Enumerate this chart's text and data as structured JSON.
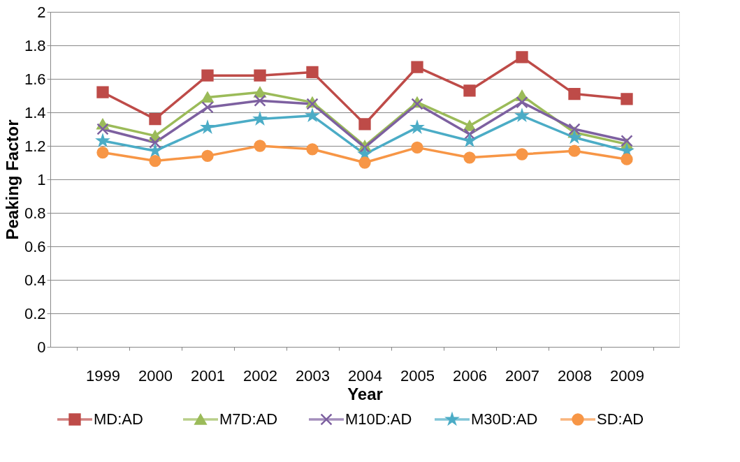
{
  "chart_data": {
    "type": "line",
    "xlabel": "Year",
    "ylabel": "Peaking Factor",
    "categories": [
      "1999",
      "2000",
      "2001",
      "2002",
      "2003",
      "2004",
      "2005",
      "2006",
      "2007",
      "2008",
      "2009"
    ],
    "series": [
      {
        "name": "MD:AD",
        "color": "#be4b48",
        "marker": "square",
        "values": [
          1.52,
          1.36,
          1.62,
          1.62,
          1.64,
          1.33,
          1.67,
          1.53,
          1.73,
          1.51,
          1.48
        ]
      },
      {
        "name": "M7D:AD",
        "color": "#9bbb59",
        "marker": "triangle",
        "values": [
          1.33,
          1.26,
          1.49,
          1.52,
          1.46,
          1.2,
          1.46,
          1.32,
          1.5,
          1.28,
          1.21
        ]
      },
      {
        "name": "M10D:AD",
        "color": "#7d60a0",
        "marker": "cross",
        "values": [
          1.3,
          1.22,
          1.43,
          1.47,
          1.45,
          1.19,
          1.45,
          1.27,
          1.46,
          1.3,
          1.23
        ]
      },
      {
        "name": "M30D:AD",
        "color": "#4bacc6",
        "marker": "star",
        "values": [
          1.23,
          1.17,
          1.31,
          1.36,
          1.38,
          1.15,
          1.31,
          1.23,
          1.38,
          1.25,
          1.17
        ]
      },
      {
        "name": "SD:AD",
        "color": "#f79646",
        "marker": "circle",
        "values": [
          1.16,
          1.11,
          1.14,
          1.2,
          1.18,
          1.1,
          1.19,
          1.13,
          1.15,
          1.17,
          1.12
        ]
      }
    ],
    "ylim": [
      0,
      2
    ],
    "yticks": [
      0,
      0.2,
      0.4,
      0.6,
      0.8,
      1,
      1.2,
      1.4,
      1.6,
      1.8,
      2
    ],
    "grid": "y",
    "legend": "bottom",
    "line_style": "solid"
  }
}
